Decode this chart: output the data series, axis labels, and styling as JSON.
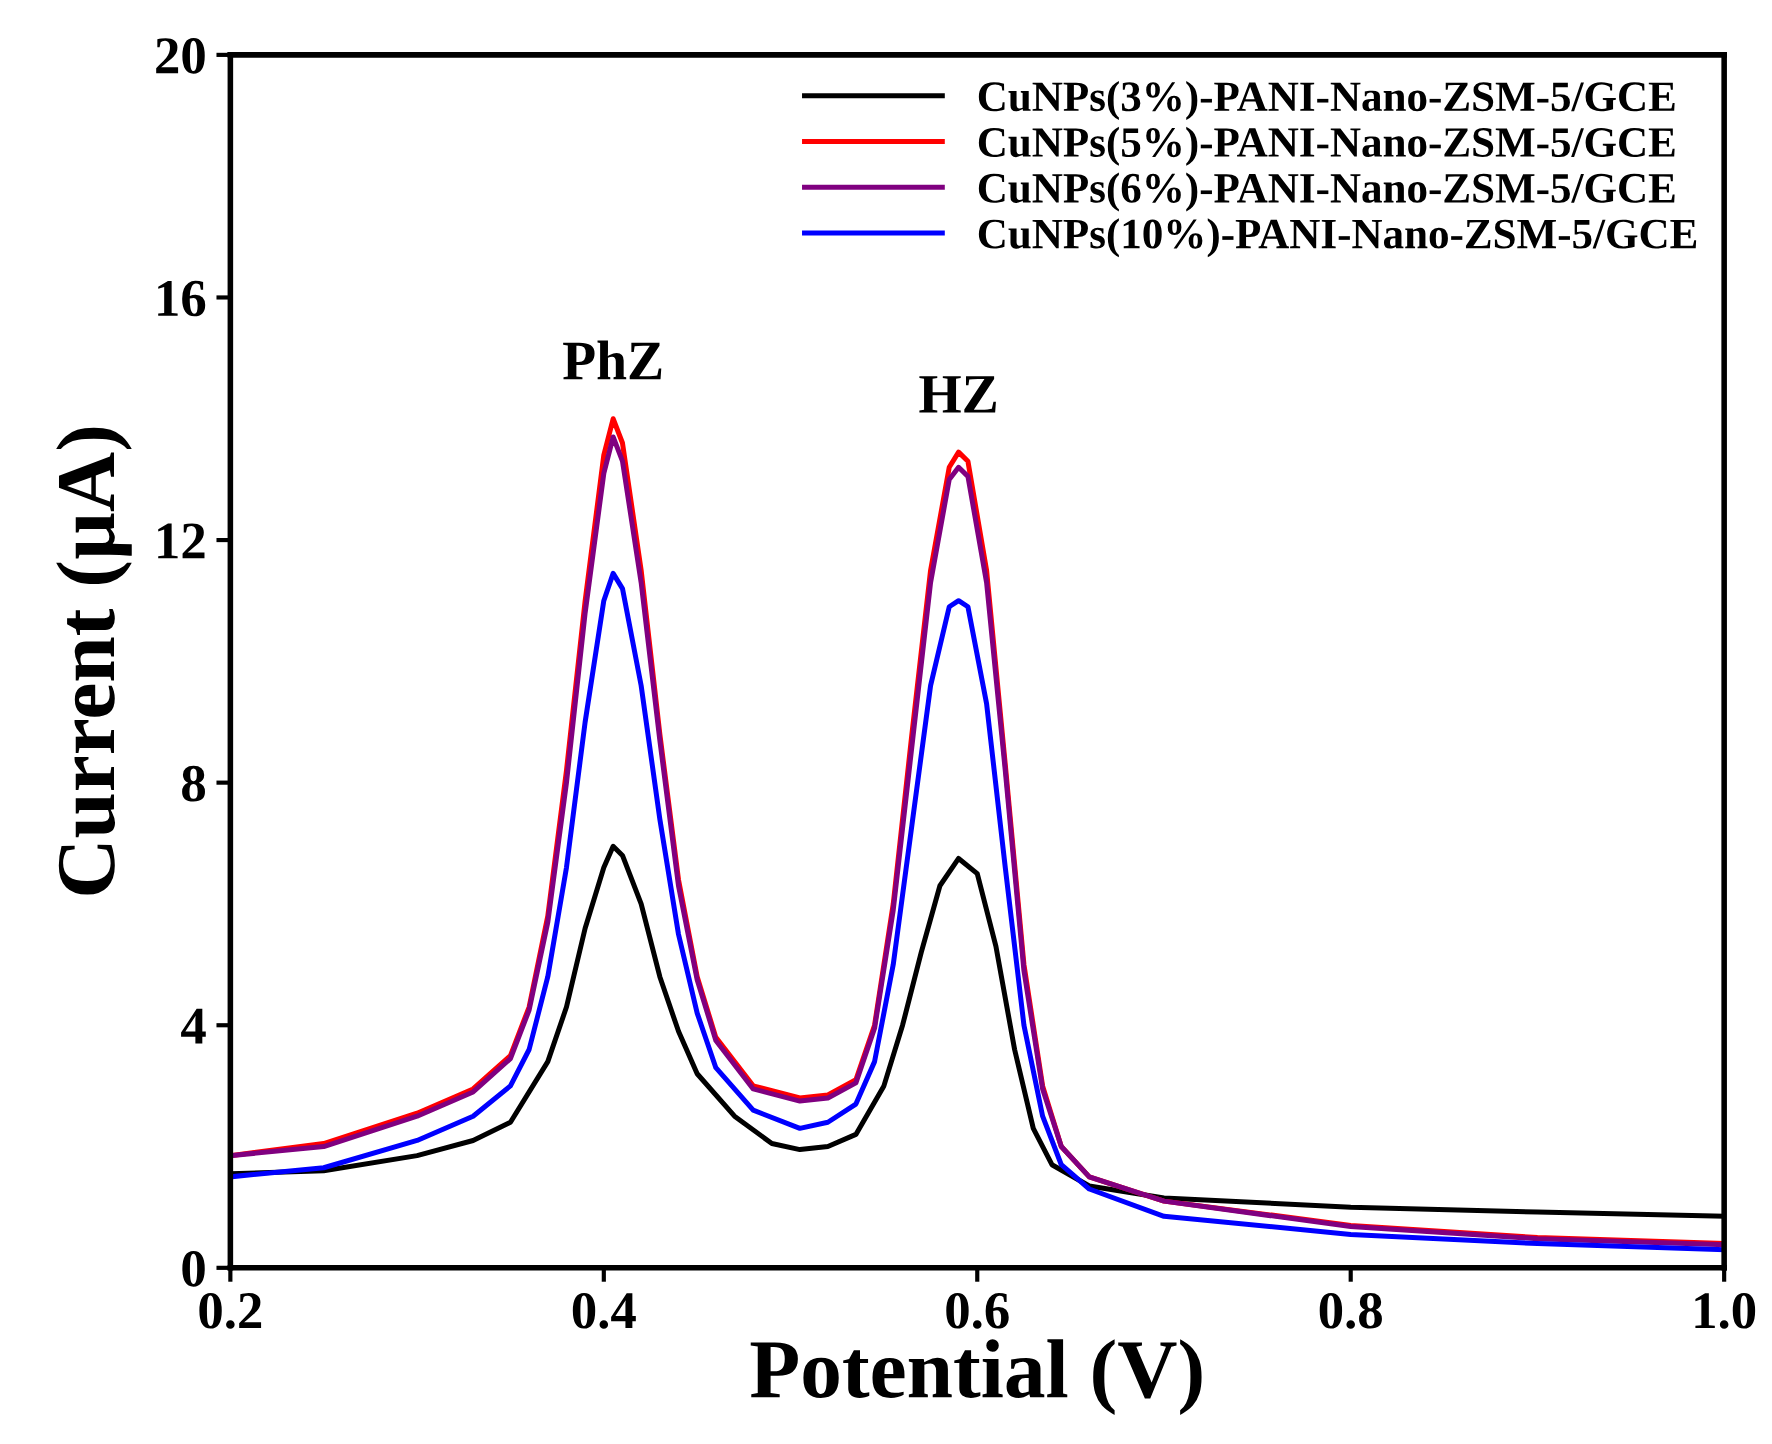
{
  "chart_data": {
    "type": "line",
    "xlabel": "Potential (V)",
    "ylabel": "Current (µA)",
    "xlim": [
      0.2,
      1.0
    ],
    "xticks": [
      0.2,
      0.4,
      0.6,
      0.8,
      {
        "value": 1.0,
        "label": "1.0"
      }
    ],
    "ylim": [
      0,
      20
    ],
    "yticks": [
      0,
      4,
      8,
      12,
      16,
      20
    ],
    "grid": false,
    "legend": "top right",
    "line_style": "solid",
    "marker": "none",
    "annotations": [
      {
        "text": "PhZ",
        "x": 0.405,
        "y": 14.0
      },
      {
        "text": "HZ",
        "x": 0.59,
        "y": 13.45
      }
    ],
    "series": [
      {
        "name": "CuNPs(3%)-PANI-Nano-ZSM-5/GCE",
        "color": "#000000",
        "x": [
          0.2,
          0.25,
          0.3,
          0.33,
          0.35,
          0.37,
          0.38,
          0.39,
          0.4,
          0.405,
          0.41,
          0.42,
          0.43,
          0.44,
          0.45,
          0.47,
          0.49,
          0.505,
          0.52,
          0.535,
          0.55,
          0.56,
          0.57,
          0.58,
          0.59,
          0.6,
          0.61,
          0.62,
          0.63,
          0.64,
          0.66,
          0.7,
          0.8,
          0.9,
          1.0
        ],
        "values": [
          1.55,
          1.6,
          1.85,
          2.1,
          2.4,
          3.4,
          4.3,
          5.6,
          6.6,
          6.95,
          6.8,
          6.0,
          4.8,
          3.9,
          3.2,
          2.5,
          2.05,
          1.95,
          2.0,
          2.2,
          3.0,
          4.0,
          5.2,
          6.3,
          6.75,
          6.5,
          5.3,
          3.6,
          2.3,
          1.7,
          1.35,
          1.15,
          1.0,
          0.92,
          0.85
        ]
      },
      {
        "name": "CuNPs(5%)-PANI-Nano-ZSM-5/GCE",
        "color": "#ff0000",
        "x": [
          0.2,
          0.25,
          0.3,
          0.33,
          0.35,
          0.36,
          0.37,
          0.38,
          0.39,
          0.4,
          0.405,
          0.41,
          0.42,
          0.43,
          0.44,
          0.45,
          0.46,
          0.48,
          0.505,
          0.52,
          0.535,
          0.545,
          0.555,
          0.565,
          0.575,
          0.585,
          0.59,
          0.595,
          0.605,
          0.615,
          0.625,
          0.635,
          0.645,
          0.66,
          0.7,
          0.8,
          0.9,
          1.0
        ],
        "values": [
          1.85,
          2.05,
          2.55,
          2.95,
          3.5,
          4.3,
          5.8,
          8.2,
          11.0,
          13.4,
          14.0,
          13.6,
          11.5,
          8.8,
          6.4,
          4.8,
          3.8,
          3.0,
          2.8,
          2.85,
          3.1,
          4.0,
          6.0,
          8.8,
          11.5,
          13.2,
          13.45,
          13.3,
          11.5,
          8.3,
          5.0,
          3.0,
          2.0,
          1.5,
          1.1,
          0.7,
          0.5,
          0.4
        ]
      },
      {
        "name": "CuNPs(6%)-PANI-Nano-ZSM-5/GCE",
        "color": "#800080",
        "x": [
          0.2,
          0.25,
          0.3,
          0.33,
          0.35,
          0.36,
          0.37,
          0.38,
          0.39,
          0.4,
          0.405,
          0.41,
          0.42,
          0.43,
          0.44,
          0.45,
          0.46,
          0.48,
          0.505,
          0.52,
          0.535,
          0.545,
          0.555,
          0.565,
          0.575,
          0.585,
          0.59,
          0.595,
          0.605,
          0.615,
          0.625,
          0.635,
          0.645,
          0.66,
          0.7,
          0.8,
          0.9,
          1.0
        ],
        "values": [
          1.85,
          2.0,
          2.5,
          2.9,
          3.45,
          4.25,
          5.7,
          8.0,
          10.8,
          13.1,
          13.7,
          13.3,
          11.3,
          8.7,
          6.3,
          4.75,
          3.75,
          2.95,
          2.75,
          2.8,
          3.05,
          3.95,
          5.9,
          8.6,
          11.3,
          13.0,
          13.2,
          13.05,
          11.3,
          8.2,
          4.9,
          2.95,
          2.0,
          1.5,
          1.1,
          0.68,
          0.48,
          0.38
        ]
      },
      {
        "name": "CuNPs(10%)-PANI-Nano-ZSM-5/GCE",
        "color": "#0000ff",
        "x": [
          0.2,
          0.25,
          0.3,
          0.33,
          0.35,
          0.36,
          0.37,
          0.38,
          0.39,
          0.4,
          0.405,
          0.41,
          0.42,
          0.43,
          0.44,
          0.45,
          0.46,
          0.48,
          0.505,
          0.52,
          0.535,
          0.545,
          0.555,
          0.565,
          0.575,
          0.585,
          0.59,
          0.595,
          0.605,
          0.615,
          0.625,
          0.635,
          0.645,
          0.66,
          0.7,
          0.8,
          0.9,
          1.0
        ],
        "values": [
          1.5,
          1.65,
          2.1,
          2.5,
          3.0,
          3.6,
          4.8,
          6.6,
          9.0,
          11.0,
          11.45,
          11.2,
          9.6,
          7.4,
          5.5,
          4.2,
          3.3,
          2.6,
          2.3,
          2.4,
          2.7,
          3.4,
          5.0,
          7.3,
          9.6,
          10.9,
          11.0,
          10.9,
          9.3,
          6.6,
          4.0,
          2.5,
          1.7,
          1.3,
          0.85,
          0.55,
          0.4,
          0.3
        ]
      }
    ]
  }
}
